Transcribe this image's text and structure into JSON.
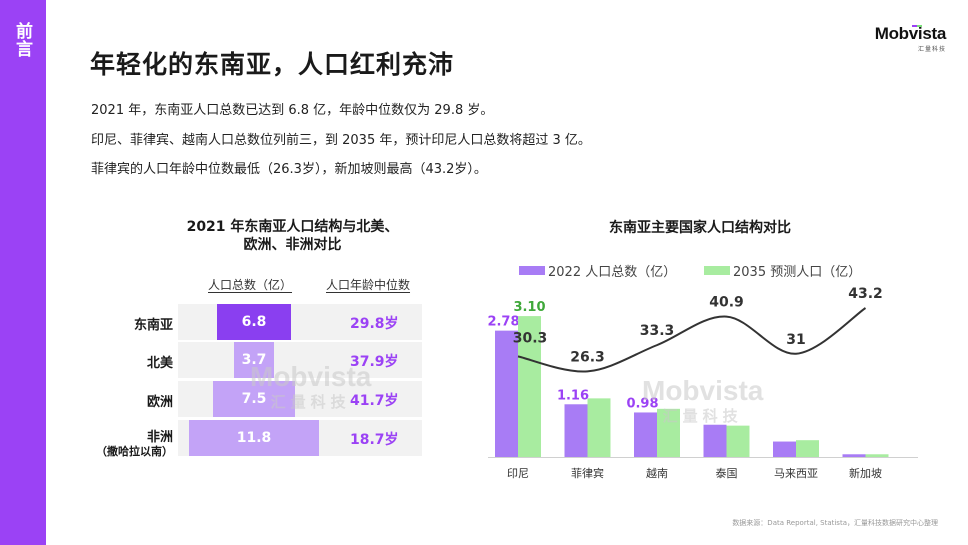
{
  "sidebar": {
    "label": "前言",
    "color": "#9b42f5"
  },
  "logo": {
    "name": "Mobvista",
    "sub": "汇量科技"
  },
  "page_title": "年轻化的东南亚，人口红利充沛",
  "intro": [
    "2021 年，东南亚人口总数已达到 6.8 亿，年龄中位数仅为 29.8 岁。",
    "印尼、菲律宾、越南人口总数位列前三，到 2035 年，预计印尼人口总数将超过 3 亿。",
    "菲律宾的人口年龄中位数最低（26.3岁），新加坡则最高（43.2岁）。"
  ],
  "watermark": {
    "main": "Mobvista",
    "sub": "汇量科技"
  },
  "source": "数据来源：Data Reportal, Statista，汇量科技数据研究中心整理",
  "chart_data": [
    {
      "type": "table",
      "title": "2021 年东南亚人口结构与北美、欧洲、非洲对比",
      "title_lines": [
        "2021 年东南亚人口结构与北美、",
        "欧洲、非洲对比"
      ],
      "columns": [
        "人口总数（亿）",
        "人口年龄中位数"
      ],
      "rows": [
        {
          "region": "东南亚",
          "sub": "",
          "population": 6.8,
          "population_label": "6.8",
          "median_age": "29.8岁",
          "color": "#8a3ff0"
        },
        {
          "region": "北美",
          "sub": "",
          "population": 3.7,
          "population_label": "3.7",
          "median_age": "37.9岁",
          "color": "#c3a3f7"
        },
        {
          "region": "欧洲",
          "sub": "",
          "population": 7.5,
          "population_label": "7.5",
          "median_age": "41.7岁",
          "color": "#c3a3f7"
        },
        {
          "region": "非洲",
          "sub": "（撒哈拉以南）",
          "population": 11.8,
          "population_label": "11.8",
          "median_age": "18.7岁",
          "color": "#c3a3f7"
        }
      ]
    },
    {
      "type": "bar",
      "title": "东南亚主要国家人口结构对比",
      "categories": [
        "印尼",
        "菲律宾",
        "越南",
        "泰国",
        "马来西亚",
        "新加坡"
      ],
      "series": [
        {
          "name": "2022 人口总数（亿）",
          "color": "#a87cf5",
          "values": [
            2.78,
            1.16,
            0.98,
            0.71,
            0.34,
            0.06
          ],
          "labels": [
            "2.78",
            "1.16",
            "0.98",
            "",
            "",
            ""
          ],
          "label_color": "#9b42f5"
        },
        {
          "name": "2035 预测人口（亿）",
          "color": "#a8eca0",
          "values": [
            3.1,
            1.29,
            1.06,
            0.69,
            0.37,
            0.06
          ],
          "labels": [
            "3.10",
            "",
            "",
            "",
            "",
            ""
          ],
          "label_color": "#3fa83a"
        }
      ],
      "line": {
        "name": "人口年龄中位数",
        "color": "#333333",
        "values": [
          30.3,
          26.3,
          33.3,
          40.9,
          31,
          43.2
        ],
        "labels": [
          "30.3",
          "26.3",
          "33.3",
          "40.9",
          "31",
          "43.2"
        ]
      },
      "ylim": [
        0,
        3.3
      ],
      "line_ylim": [
        20,
        48
      ],
      "grid": false,
      "legend": "top"
    }
  ]
}
